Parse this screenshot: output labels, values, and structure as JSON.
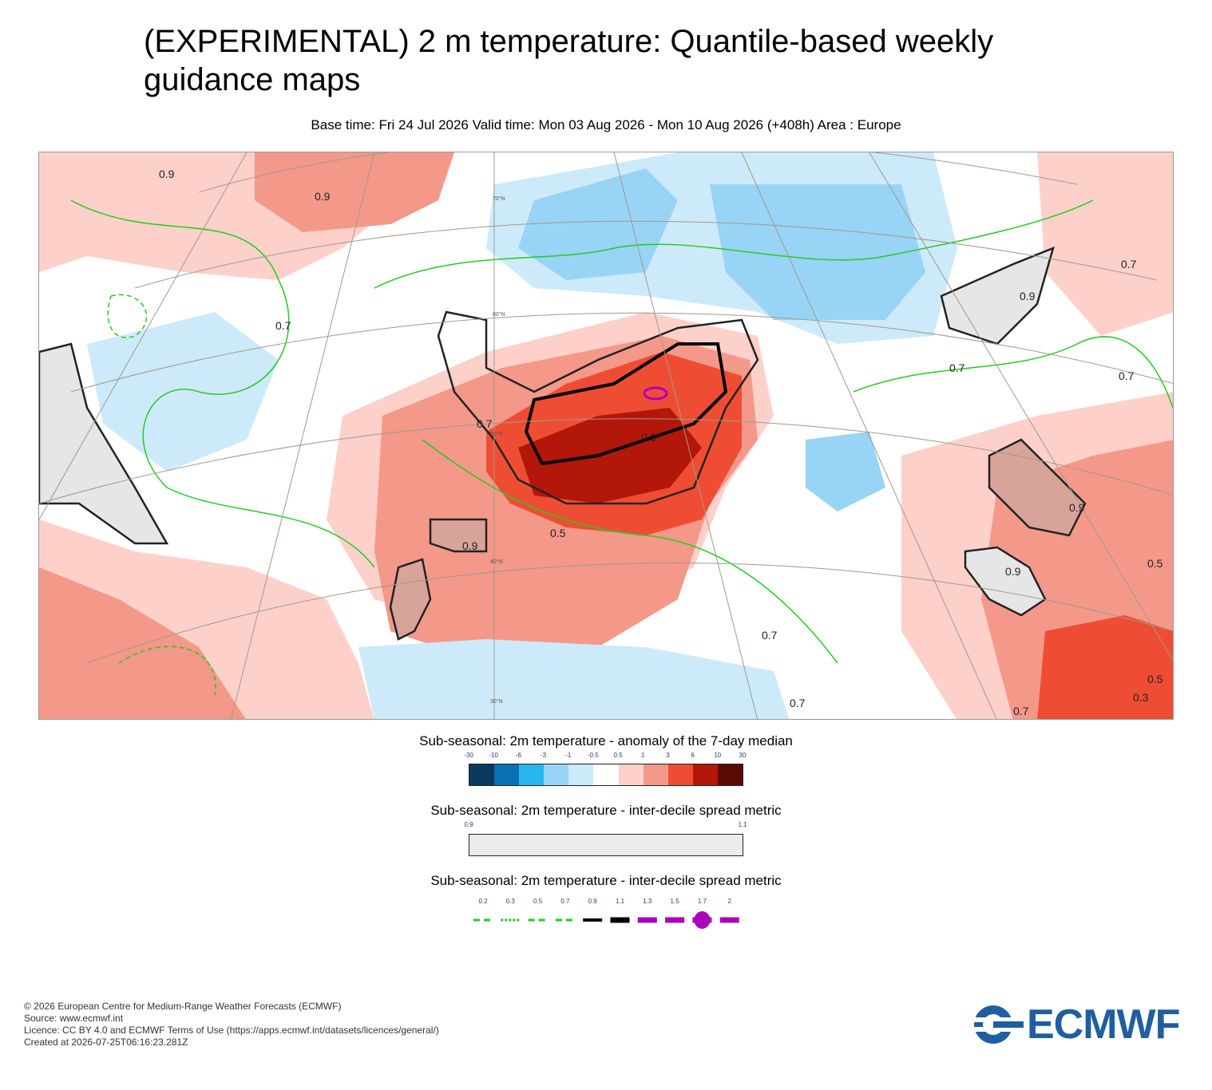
{
  "header": {
    "title": "(EXPERIMENTAL) 2 m temperature: Quantile-based weekly guidance maps",
    "subtitle": "Base time: Fri 24 Jul 2026 Valid time: Mon 03 Aug 2026 - Mon 10 Aug 2026 (+408h) Area : Europe"
  },
  "map": {
    "area": "Europe",
    "lat_labels": [
      "70°N",
      "60°N",
      "50°N",
      "40°N",
      "30°N"
    ],
    "contour_labels": [
      "0.7",
      "0.7",
      "0.7",
      "0.7",
      "0.9",
      "0.9",
      "0.9",
      "0.9",
      "0.9",
      "0.9",
      "0.9",
      "0.5",
      "0.5",
      "0.5",
      "0.3",
      "0.7",
      "0.7",
      "0.7",
      "0.7"
    ],
    "anomaly_regions_note": "warm anomaly over western/central Europe, cool anomaly over Scandinavia/western Russia"
  },
  "legends": {
    "anomaly": {
      "title": "Sub-seasonal: 2m temperature - anomaly of the 7-day median",
      "ticks": [
        "-30",
        "-10",
        "-6",
        "-3",
        "-1",
        "-0.5",
        "0.5",
        "1",
        "3",
        "6",
        "10",
        "30"
      ],
      "colors": [
        "#0b3a5e",
        "#0a6fb3",
        "#27b6f0",
        "#98d4f5",
        "#cdeafb",
        "#ffffff",
        "#fdd1ca",
        "#f4988a",
        "#ef4d33",
        "#b3170a",
        "#5c0a05"
      ]
    },
    "spread_shade": {
      "title": "Sub-seasonal: 2m temperature - inter-decile spread metric",
      "ticks": [
        "0.9",
        "1.1"
      ],
      "color": "#ececec"
    },
    "spread_contour": {
      "title": "Sub-seasonal: 2m temperature - inter-decile spread metric",
      "ticks": [
        "0.2",
        "0.3",
        "0.5",
        "0.7",
        "0.9",
        "1.1",
        "1.3",
        "1.5",
        "1.7",
        "2"
      ],
      "line_colors": [
        "#22cc22",
        "#22cc22",
        "#22cc22",
        "#22cc22",
        "#000000",
        "#000000",
        "#aa00bb",
        "#aa00bb",
        "#aa00bb",
        "#aa00bb"
      ]
    }
  },
  "footer": {
    "line1": "© 2026 European Centre for Medium-Range Weather Forecasts (ECMWF)",
    "line2": "Source: www.ecmwf.int",
    "line3": "Licence: CC BY 4.0 and ECMWF Terms of Use (https://apps.ecmwf.int/datasets/licences/general/)",
    "line4": "Created at 2026-07-25T06:16:23.281Z"
  },
  "logo": {
    "text": "ECMWF",
    "color": "#1f5fa0"
  }
}
